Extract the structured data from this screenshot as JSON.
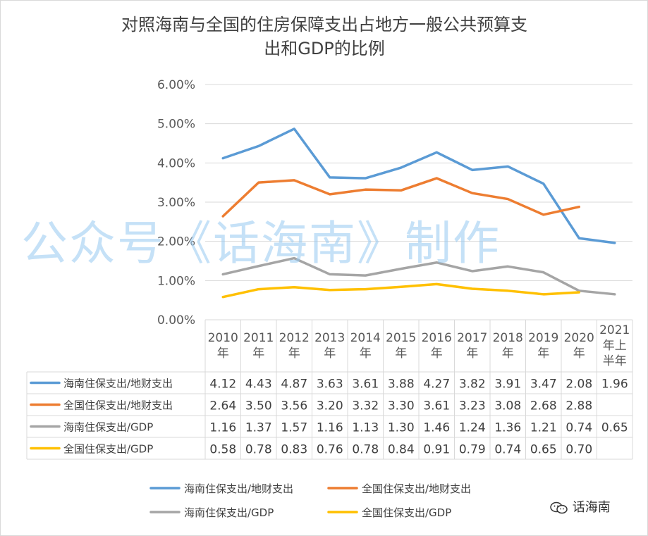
{
  "title_line1": "对照海南与全国的住房保障支出占地方一般公共预算支",
  "title_line2": "出和GDP的比例",
  "watermark": "公众号《话海南》制作",
  "brand": "话海南",
  "brand_icon": "wechat-icon",
  "chart_data": {
    "type": "line",
    "title": "对照海南与全国的住房保障支出占地方一般公共预算支出和GDP的比例",
    "categories": [
      [
        "2010",
        "年"
      ],
      [
        "2011",
        "年"
      ],
      [
        "2012",
        "年"
      ],
      [
        "2013",
        "年"
      ],
      [
        "2014",
        "年"
      ],
      [
        "2015",
        "年"
      ],
      [
        "2016",
        "年"
      ],
      [
        "2017",
        "年"
      ],
      [
        "2018",
        "年"
      ],
      [
        "2019",
        "年"
      ],
      [
        "2020",
        "年"
      ],
      [
        "2021",
        "年上",
        "半年"
      ]
    ],
    "ylim": [
      0,
      6
    ],
    "yticks": [
      "0.00%",
      "1.00%",
      "2.00%",
      "3.00%",
      "4.00%",
      "5.00%",
      "6.00%"
    ],
    "grid": true,
    "legend_position": "bottom",
    "series": [
      {
        "name": "海南住保支出/地财支出",
        "color": "#5b9bd5",
        "values": [
          4.12,
          4.43,
          4.87,
          3.63,
          3.61,
          3.88,
          4.27,
          3.82,
          3.91,
          3.47,
          2.08,
          1.96
        ],
        "labels": [
          "4.12",
          "4.43",
          "4.87",
          "3.63",
          "3.61",
          "3.88",
          "4.27",
          "3.82",
          "3.91",
          "3.47",
          "2.08",
          "1.96"
        ]
      },
      {
        "name": "全国住保支出/地财支出",
        "color": "#ed7d31",
        "values": [
          2.64,
          3.5,
          3.56,
          3.2,
          3.32,
          3.3,
          3.61,
          3.23,
          3.08,
          2.68,
          2.88,
          null
        ],
        "labels": [
          "2.64",
          "3.50",
          "3.56",
          "3.20",
          "3.32",
          "3.30",
          "3.61",
          "3.23",
          "3.08",
          "2.68",
          "2.88",
          ""
        ]
      },
      {
        "name": "海南住保支出/GDP",
        "color": "#a5a5a5",
        "values": [
          1.16,
          1.37,
          1.57,
          1.16,
          1.13,
          1.3,
          1.46,
          1.24,
          1.36,
          1.21,
          0.74,
          0.65
        ],
        "labels": [
          "1.16",
          "1.37",
          "1.57",
          "1.16",
          "1.13",
          "1.30",
          "1.46",
          "1.24",
          "1.36",
          "1.21",
          "0.74",
          "0.65"
        ]
      },
      {
        "name": "全国住保支出/GDP",
        "color": "#ffc000",
        "values": [
          0.58,
          0.78,
          0.83,
          0.76,
          0.78,
          0.84,
          0.91,
          0.79,
          0.74,
          0.65,
          0.7,
          null
        ],
        "labels": [
          "0.58",
          "0.78",
          "0.83",
          "0.76",
          "0.78",
          "0.84",
          "0.91",
          "0.79",
          "0.74",
          "0.65",
          "0.70",
          ""
        ]
      }
    ]
  }
}
